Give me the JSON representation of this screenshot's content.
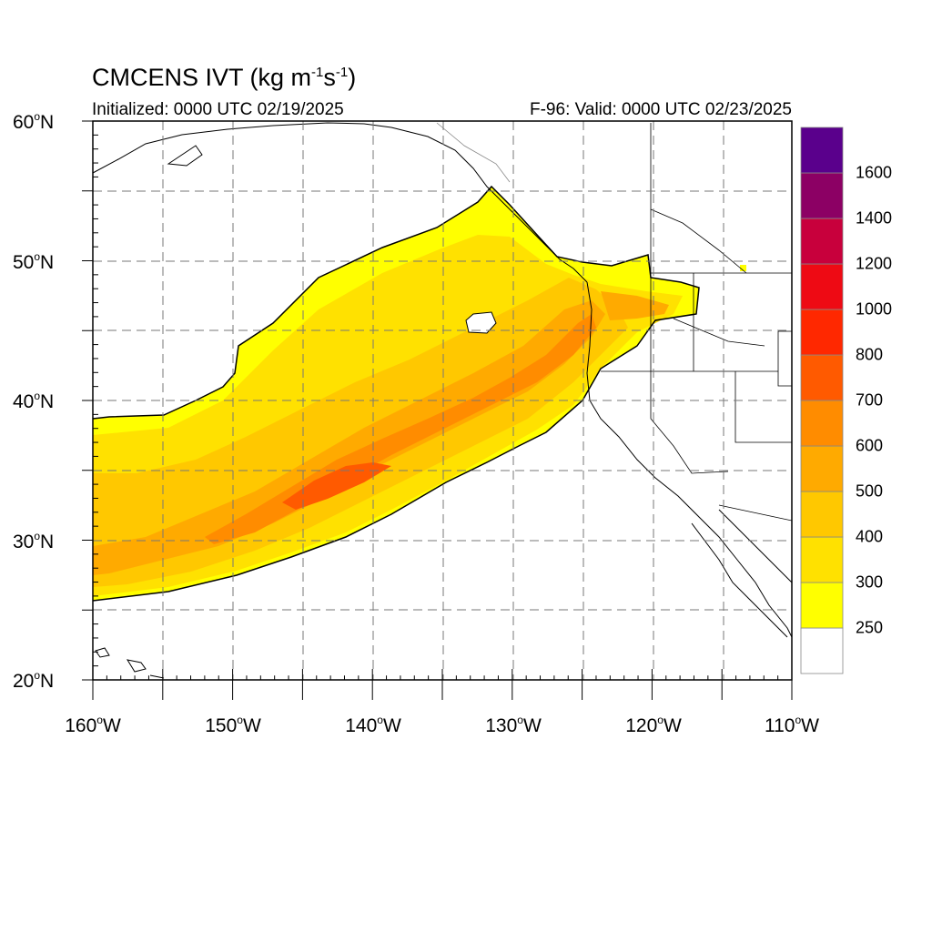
{
  "title": {
    "main": "CMCENS IVT (kg m",
    "exp1": "-1",
    "mid": "s",
    "exp2": "-1",
    "end": ")"
  },
  "initialized": "Initialized: 0000 UTC 02/19/2025",
  "valid": "F-96: Valid: 0000 UTC 02/23/2025",
  "lat_labels": [
    {
      "num": "60",
      "hemi": "N"
    },
    {
      "num": "50",
      "hemi": "N"
    },
    {
      "num": "40",
      "hemi": "N"
    },
    {
      "num": "30",
      "hemi": "N"
    },
    {
      "num": "20",
      "hemi": "N"
    }
  ],
  "lon_labels": [
    {
      "num": "160",
      "hemi": "W"
    },
    {
      "num": "150",
      "hemi": "W"
    },
    {
      "num": "140",
      "hemi": "W"
    },
    {
      "num": "130",
      "hemi": "W"
    },
    {
      "num": "120",
      "hemi": "W"
    },
    {
      "num": "110",
      "hemi": "W"
    }
  ],
  "colorbar": {
    "labels": [
      "1600",
      "1400",
      "1200",
      "1000",
      "800",
      "700",
      "600",
      "500",
      "400",
      "300",
      "250"
    ],
    "colors": [
      "#ffffff",
      "#ffff00",
      "#ffe100",
      "#ffc800",
      "#ffaa00",
      "#ff8c00",
      "#ff5a00",
      "#ff2800",
      "#ee0a14",
      "#c8003c",
      "#8c0064",
      "#5a008c"
    ]
  },
  "map": {
    "extent": {
      "lon_min": -160,
      "lon_max": -110,
      "lat_min": 20,
      "lat_max": 60
    },
    "grid": "dashed every 5 degrees",
    "field": "integrated vapor transport"
  }
}
